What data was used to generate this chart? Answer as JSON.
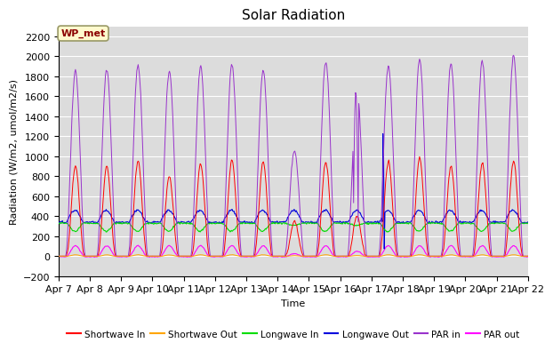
{
  "title": "Solar Radiation",
  "xlabel": "Time",
  "ylabel": "Radiation (W/m2, umol/m2/s)",
  "ylim": [
    -200,
    2300
  ],
  "x_tick_labels": [
    "Apr 7",
    "Apr 8",
    "Apr 9",
    "Apr 10",
    "Apr 11",
    "Apr 12",
    "Apr 13",
    "Apr 14",
    "Apr 15",
    "Apr 16",
    "Apr 17",
    "Apr 18",
    "Apr 19",
    "Apr 20",
    "Apr 21",
    "Apr 22"
  ],
  "annotation_text": "WP_met",
  "annotation_color": "#8B0000",
  "annotation_bg": "#FFFACD",
  "series": {
    "shortwave_in": {
      "color": "#FF0000",
      "label": "Shortwave In"
    },
    "shortwave_out": {
      "color": "#FFA500",
      "label": "Shortwave Out"
    },
    "longwave_in": {
      "color": "#00DD00",
      "label": "Longwave In"
    },
    "longwave_out": {
      "color": "#0000DD",
      "label": "Longwave Out"
    },
    "par_in": {
      "color": "#9933CC",
      "label": "PAR in"
    },
    "par_out": {
      "color": "#FF00FF",
      "label": "PAR out"
    }
  },
  "plot_bg": "#DCDCDC",
  "grid_color": "#FFFFFF",
  "title_fontsize": 11,
  "label_fontsize": 8,
  "tick_fontsize": 8
}
